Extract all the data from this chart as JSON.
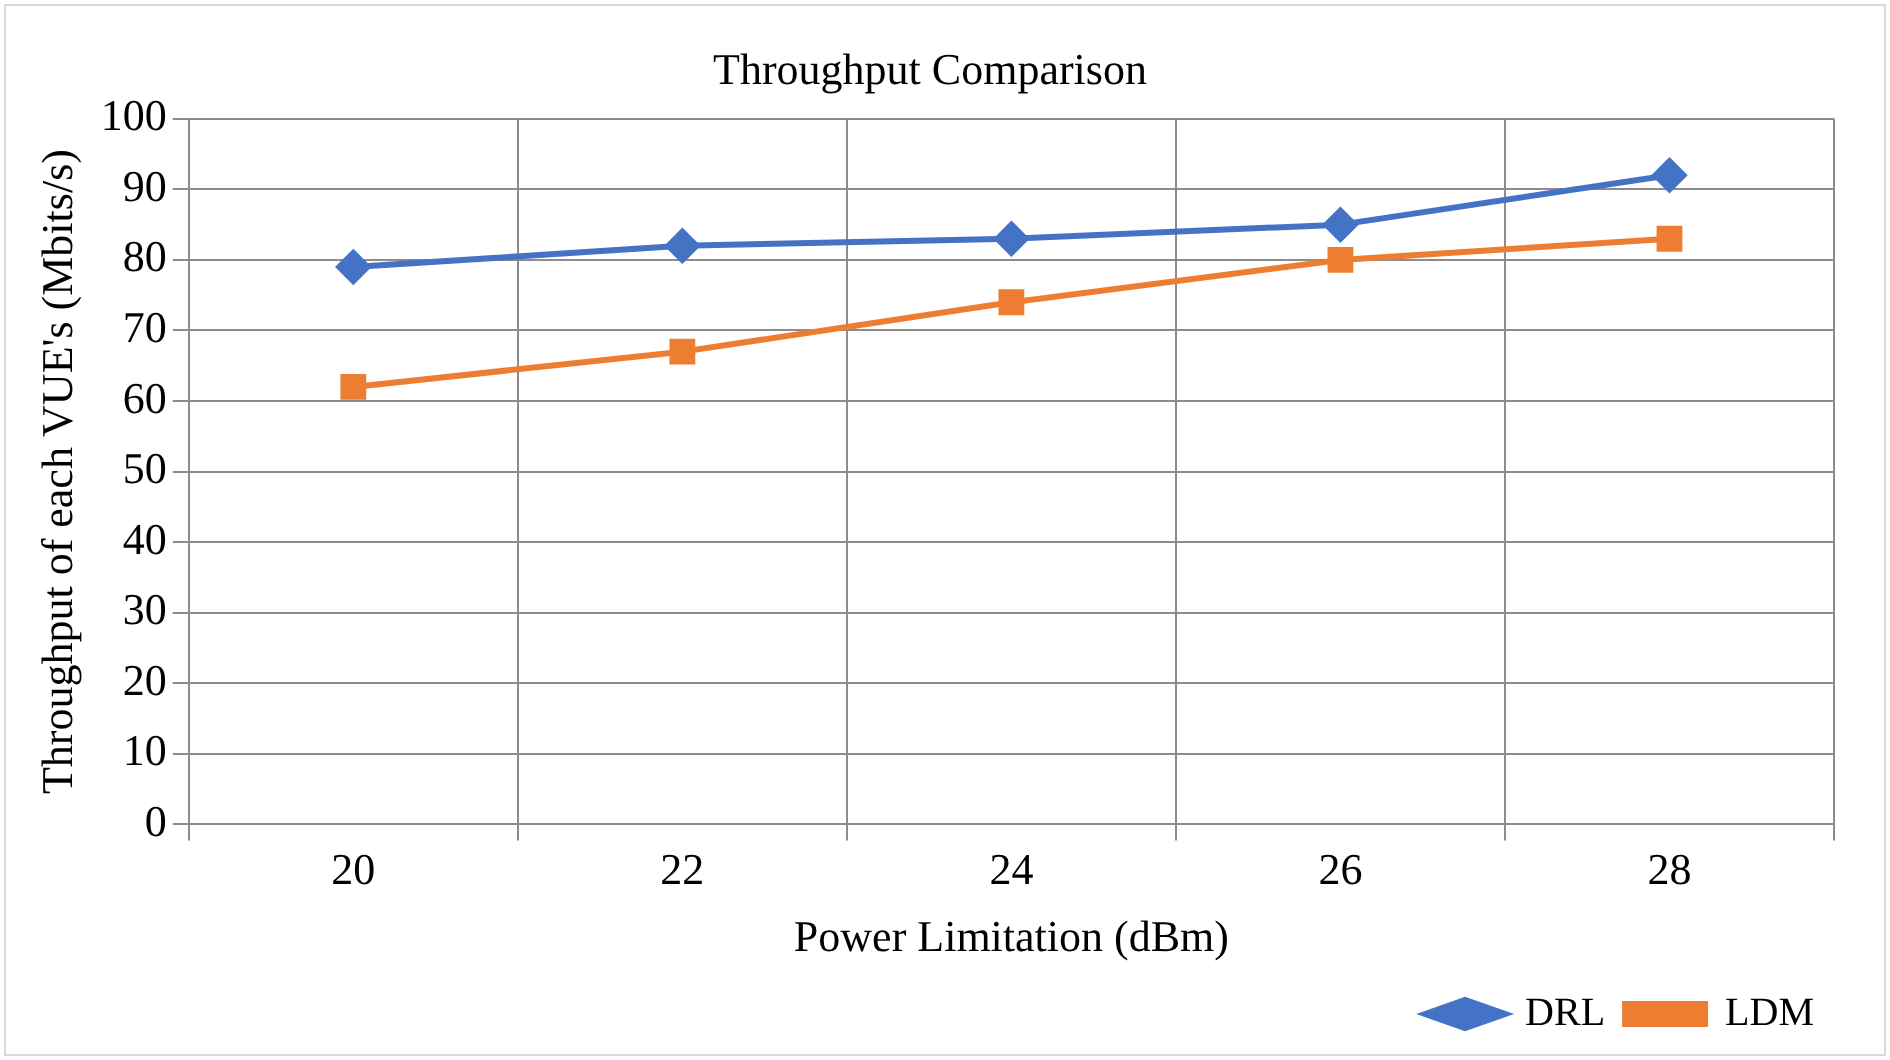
{
  "chart_data": {
    "type": "line",
    "title": "Throughput Comparison",
    "xlabel": "Power Limitation (dBm)",
    "ylabel": "Throughput of each VUE's (Mbits/s)",
    "categories": [
      "20",
      "22",
      "24",
      "26",
      "28"
    ],
    "series": [
      {
        "name": "DRL",
        "color": "#4472c4",
        "marker": "diamond",
        "values": [
          79,
          82,
          83,
          85,
          92
        ]
      },
      {
        "name": "LDM",
        "color": "#ed7d31",
        "marker": "square",
        "values": [
          62,
          67,
          74,
          80,
          83
        ]
      }
    ],
    "ylim": [
      0,
      100
    ],
    "yticks": [
      0,
      10,
      20,
      30,
      40,
      50,
      60,
      70,
      80,
      90,
      100
    ],
    "grid": true,
    "legend": "bottom right",
    "line_style": "solid"
  }
}
